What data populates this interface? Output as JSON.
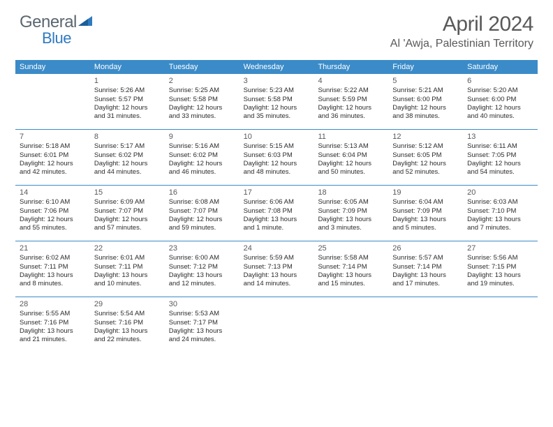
{
  "brand": {
    "part1": "General",
    "part2": "Blue"
  },
  "title": "April 2024",
  "location": "Al 'Awja, Palestinian Territory",
  "header_bg": "#3b8bc8",
  "weekdays": [
    "Sunday",
    "Monday",
    "Tuesday",
    "Wednesday",
    "Thursday",
    "Friday",
    "Saturday"
  ],
  "weeks": [
    [
      null,
      {
        "n": "1",
        "sr": "Sunrise: 5:26 AM",
        "ss": "Sunset: 5:57 PM",
        "d1": "Daylight: 12 hours",
        "d2": "and 31 minutes."
      },
      {
        "n": "2",
        "sr": "Sunrise: 5:25 AM",
        "ss": "Sunset: 5:58 PM",
        "d1": "Daylight: 12 hours",
        "d2": "and 33 minutes."
      },
      {
        "n": "3",
        "sr": "Sunrise: 5:23 AM",
        "ss": "Sunset: 5:58 PM",
        "d1": "Daylight: 12 hours",
        "d2": "and 35 minutes."
      },
      {
        "n": "4",
        "sr": "Sunrise: 5:22 AM",
        "ss": "Sunset: 5:59 PM",
        "d1": "Daylight: 12 hours",
        "d2": "and 36 minutes."
      },
      {
        "n": "5",
        "sr": "Sunrise: 5:21 AM",
        "ss": "Sunset: 6:00 PM",
        "d1": "Daylight: 12 hours",
        "d2": "and 38 minutes."
      },
      {
        "n": "6",
        "sr": "Sunrise: 5:20 AM",
        "ss": "Sunset: 6:00 PM",
        "d1": "Daylight: 12 hours",
        "d2": "and 40 minutes."
      }
    ],
    [
      {
        "n": "7",
        "sr": "Sunrise: 5:18 AM",
        "ss": "Sunset: 6:01 PM",
        "d1": "Daylight: 12 hours",
        "d2": "and 42 minutes."
      },
      {
        "n": "8",
        "sr": "Sunrise: 5:17 AM",
        "ss": "Sunset: 6:02 PM",
        "d1": "Daylight: 12 hours",
        "d2": "and 44 minutes."
      },
      {
        "n": "9",
        "sr": "Sunrise: 5:16 AM",
        "ss": "Sunset: 6:02 PM",
        "d1": "Daylight: 12 hours",
        "d2": "and 46 minutes."
      },
      {
        "n": "10",
        "sr": "Sunrise: 5:15 AM",
        "ss": "Sunset: 6:03 PM",
        "d1": "Daylight: 12 hours",
        "d2": "and 48 minutes."
      },
      {
        "n": "11",
        "sr": "Sunrise: 5:13 AM",
        "ss": "Sunset: 6:04 PM",
        "d1": "Daylight: 12 hours",
        "d2": "and 50 minutes."
      },
      {
        "n": "12",
        "sr": "Sunrise: 5:12 AM",
        "ss": "Sunset: 6:05 PM",
        "d1": "Daylight: 12 hours",
        "d2": "and 52 minutes."
      },
      {
        "n": "13",
        "sr": "Sunrise: 6:11 AM",
        "ss": "Sunset: 7:05 PM",
        "d1": "Daylight: 12 hours",
        "d2": "and 54 minutes."
      }
    ],
    [
      {
        "n": "14",
        "sr": "Sunrise: 6:10 AM",
        "ss": "Sunset: 7:06 PM",
        "d1": "Daylight: 12 hours",
        "d2": "and 55 minutes."
      },
      {
        "n": "15",
        "sr": "Sunrise: 6:09 AM",
        "ss": "Sunset: 7:07 PM",
        "d1": "Daylight: 12 hours",
        "d2": "and 57 minutes."
      },
      {
        "n": "16",
        "sr": "Sunrise: 6:08 AM",
        "ss": "Sunset: 7:07 PM",
        "d1": "Daylight: 12 hours",
        "d2": "and 59 minutes."
      },
      {
        "n": "17",
        "sr": "Sunrise: 6:06 AM",
        "ss": "Sunset: 7:08 PM",
        "d1": "Daylight: 13 hours",
        "d2": "and 1 minute."
      },
      {
        "n": "18",
        "sr": "Sunrise: 6:05 AM",
        "ss": "Sunset: 7:09 PM",
        "d1": "Daylight: 13 hours",
        "d2": "and 3 minutes."
      },
      {
        "n": "19",
        "sr": "Sunrise: 6:04 AM",
        "ss": "Sunset: 7:09 PM",
        "d1": "Daylight: 13 hours",
        "d2": "and 5 minutes."
      },
      {
        "n": "20",
        "sr": "Sunrise: 6:03 AM",
        "ss": "Sunset: 7:10 PM",
        "d1": "Daylight: 13 hours",
        "d2": "and 7 minutes."
      }
    ],
    [
      {
        "n": "21",
        "sr": "Sunrise: 6:02 AM",
        "ss": "Sunset: 7:11 PM",
        "d1": "Daylight: 13 hours",
        "d2": "and 8 minutes."
      },
      {
        "n": "22",
        "sr": "Sunrise: 6:01 AM",
        "ss": "Sunset: 7:11 PM",
        "d1": "Daylight: 13 hours",
        "d2": "and 10 minutes."
      },
      {
        "n": "23",
        "sr": "Sunrise: 6:00 AM",
        "ss": "Sunset: 7:12 PM",
        "d1": "Daylight: 13 hours",
        "d2": "and 12 minutes."
      },
      {
        "n": "24",
        "sr": "Sunrise: 5:59 AM",
        "ss": "Sunset: 7:13 PM",
        "d1": "Daylight: 13 hours",
        "d2": "and 14 minutes."
      },
      {
        "n": "25",
        "sr": "Sunrise: 5:58 AM",
        "ss": "Sunset: 7:14 PM",
        "d1": "Daylight: 13 hours",
        "d2": "and 15 minutes."
      },
      {
        "n": "26",
        "sr": "Sunrise: 5:57 AM",
        "ss": "Sunset: 7:14 PM",
        "d1": "Daylight: 13 hours",
        "d2": "and 17 minutes."
      },
      {
        "n": "27",
        "sr": "Sunrise: 5:56 AM",
        "ss": "Sunset: 7:15 PM",
        "d1": "Daylight: 13 hours",
        "d2": "and 19 minutes."
      }
    ],
    [
      {
        "n": "28",
        "sr": "Sunrise: 5:55 AM",
        "ss": "Sunset: 7:16 PM",
        "d1": "Daylight: 13 hours",
        "d2": "and 21 minutes."
      },
      {
        "n": "29",
        "sr": "Sunrise: 5:54 AM",
        "ss": "Sunset: 7:16 PM",
        "d1": "Daylight: 13 hours",
        "d2": "and 22 minutes."
      },
      {
        "n": "30",
        "sr": "Sunrise: 5:53 AM",
        "ss": "Sunset: 7:17 PM",
        "d1": "Daylight: 13 hours",
        "d2": "and 24 minutes."
      },
      null,
      null,
      null,
      null
    ]
  ]
}
